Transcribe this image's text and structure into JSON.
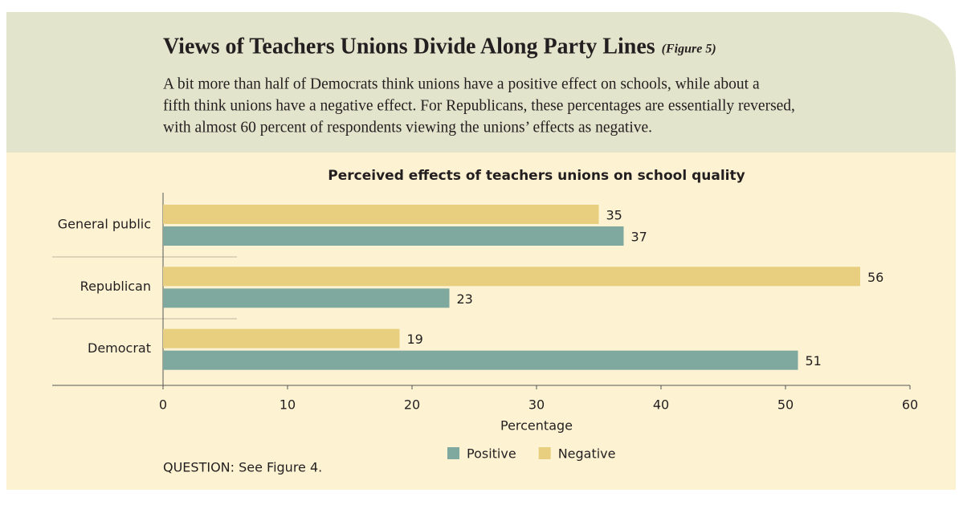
{
  "header": {
    "title": "Views of Teachers Unions Divide Along Party Lines",
    "figure_label": "(Figure 5)",
    "description": [
      "A bit more than half of Democrats think unions have a positive effect on schools, while about a",
      "fifth think unions have a negative effect. For Republicans, these percentages are essentially reversed,",
      "with almost 60 percent of respondents viewing the unions’ effects as negative."
    ]
  },
  "chart_data": {
    "type": "hbar",
    "title": "Perceived effects of teachers unions on school quality",
    "categories": [
      "General public",
      "Republican",
      "Democrat"
    ],
    "series": [
      {
        "name": "Positive",
        "color": "#7fa89e",
        "values": [
          37,
          23,
          51
        ]
      },
      {
        "name": "Negative",
        "color": "#e8cf80",
        "values": [
          35,
          56,
          19
        ]
      }
    ],
    "xlim": [
      0,
      60
    ],
    "xticks": [
      0,
      10,
      20,
      30,
      40,
      50,
      60
    ],
    "xlabel": "Percentage",
    "legend": "bottom"
  },
  "note": "QUESTION: See Figure 4."
}
